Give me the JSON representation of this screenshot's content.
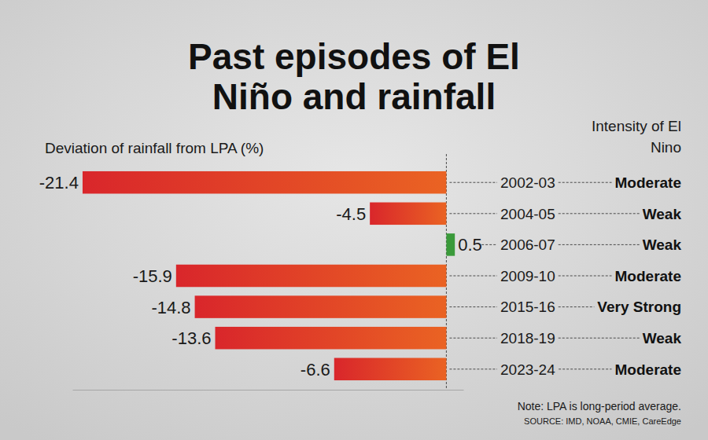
{
  "chart_data": {
    "type": "bar",
    "orientation": "horizontal",
    "title": "Past episodes of El Niño and rainfall",
    "x_label": "Deviation of rainfall from LPA (%)",
    "categories": [
      "2002-03",
      "2004-05",
      "2006-07",
      "2009-10",
      "2015-16",
      "2018-19",
      "2023-24"
    ],
    "values": [
      -21.4,
      -4.5,
      0.5,
      -15.9,
      -14.8,
      -13.6,
      -6.6
    ],
    "colors": [
      "#d9262b",
      "#d9262b",
      "#3a9a3a",
      "#d9262b",
      "#d9262b",
      "#d9262b",
      "#d9262b"
    ],
    "intensity_title": "Intensity of El Nino",
    "intensity": [
      "Moderate",
      "Weak",
      "Weak",
      "Moderate",
      "Very Strong",
      "Weak",
      "Moderate"
    ],
    "xlim": [
      -22,
      1
    ],
    "xticks": [
      0
    ],
    "tick_labels": false,
    "data_labels": true,
    "grid": false,
    "note": "Note: LPA is long-period average.",
    "source": "SOURCE: IMD, NOAA, CMIE, CareEdge"
  }
}
